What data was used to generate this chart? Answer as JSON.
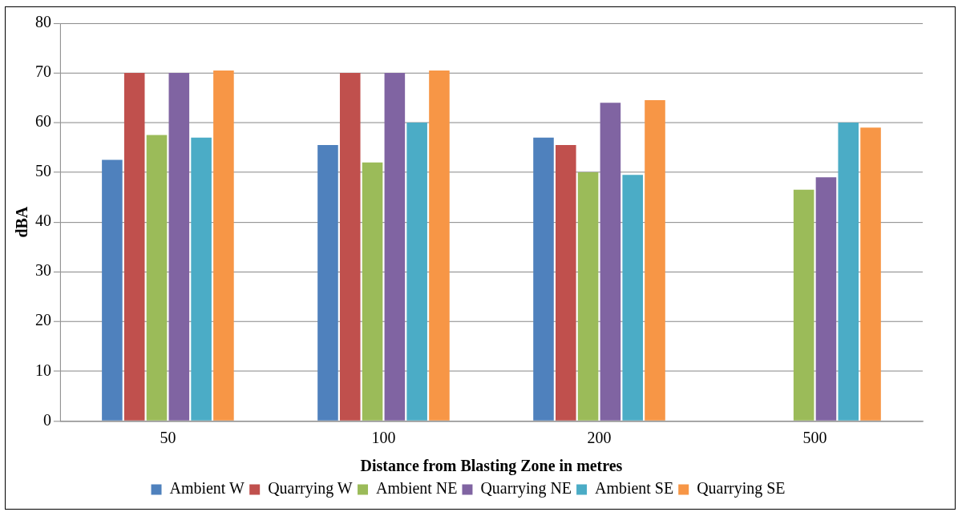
{
  "chart_data": {
    "type": "bar",
    "xlabel": "Distance from Blasting Zone in metres",
    "ylabel": "dBA",
    "categories": [
      "50",
      "100",
      "200",
      "500"
    ],
    "series": [
      {
        "name": "Ambient W",
        "color": "#4f81bd",
        "values": [
          52.5,
          55.5,
          57,
          null
        ]
      },
      {
        "name": "Quarrying W",
        "color": "#c0504d",
        "values": [
          70,
          70,
          55.5,
          null
        ]
      },
      {
        "name": "Ambient NE",
        "color": "#9bbb59",
        "values": [
          57.5,
          52,
          50,
          46.5
        ]
      },
      {
        "name": "Quarrying NE",
        "color": "#8064a2",
        "values": [
          70,
          70,
          64,
          49
        ]
      },
      {
        "name": "Ambient SE",
        "color": "#4bacc6",
        "values": [
          57,
          60,
          49.5,
          60
        ]
      },
      {
        "name": "Quarrying SE",
        "color": "#f79646",
        "values": [
          70.5,
          70.5,
          64.5,
          59
        ]
      }
    ],
    "ylim": [
      0,
      80
    ],
    "yticks": [
      0,
      10,
      20,
      30,
      40,
      50,
      60,
      70,
      80
    ],
    "grid": "y",
    "legend": "bottom"
  }
}
